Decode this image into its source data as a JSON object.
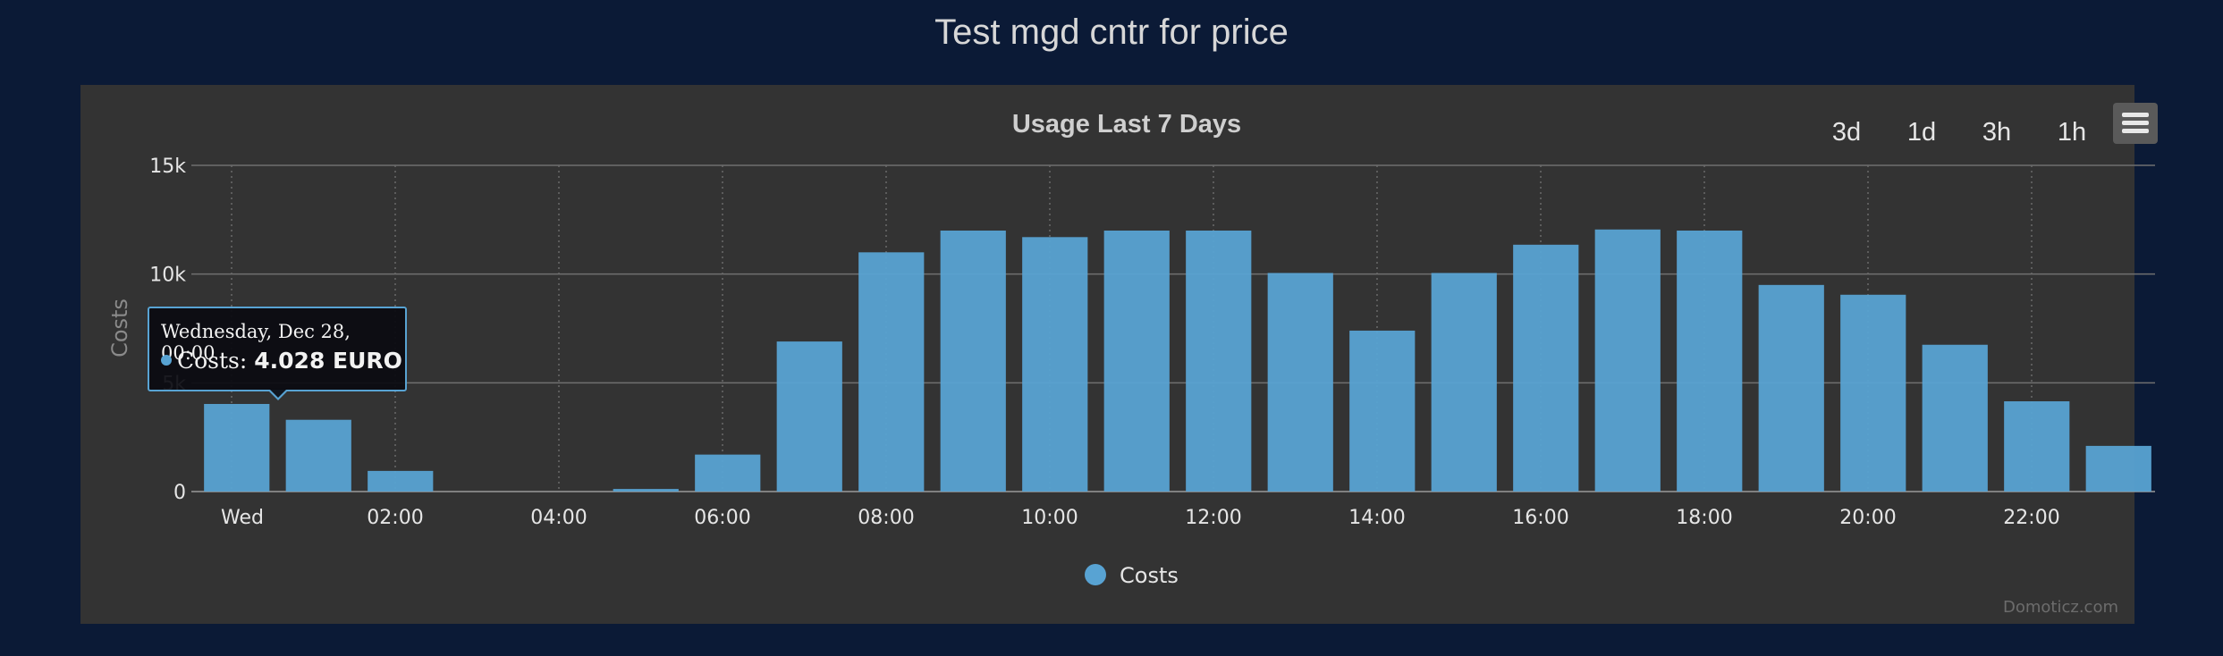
{
  "page": {
    "title": "Test mgd cntr for price"
  },
  "toolbar": {
    "ranges": [
      "3d",
      "1d",
      "3h",
      "1h"
    ],
    "menu_icon": "hamburger-menu-icon"
  },
  "tooltip": {
    "date": "Wednesday, Dec 28, 00:00",
    "series": "Costs",
    "value": "4.028 EURO"
  },
  "credits": "Domoticz.com",
  "colors": {
    "background": "#0b1a36",
    "panel": "#333333",
    "bar": "#58a3d3"
  },
  "chart_data": {
    "type": "bar",
    "title": "Usage Last 7 Days",
    "ylabel": "Costs",
    "xlabel": "",
    "ylim": [
      0,
      15000
    ],
    "y_ticks": [
      "0",
      "5k",
      "10k",
      "15k"
    ],
    "x_tick_labels": [
      "Wed",
      "02:00",
      "04:00",
      "06:00",
      "08:00",
      "10:00",
      "12:00",
      "14:00",
      "16:00",
      "18:00",
      "20:00",
      "22:00"
    ],
    "categories": [
      "00:00",
      "01:00",
      "02:00",
      "03:00",
      "04:00",
      "05:00",
      "06:00",
      "07:00",
      "08:00",
      "09:00",
      "10:00",
      "11:00",
      "12:00",
      "13:00",
      "14:00",
      "15:00",
      "16:00",
      "17:00",
      "18:00",
      "19:00",
      "20:00",
      "21:00",
      "22:00",
      "23:00"
    ],
    "series": [
      {
        "name": "Costs",
        "values": [
          4028,
          3300,
          950,
          0,
          0,
          120,
          1700,
          6900,
          11000,
          12000,
          11700,
          12000,
          12000,
          10050,
          7400,
          10050,
          11350,
          12050,
          12000,
          9500,
          9050,
          6750,
          4150,
          2100
        ]
      }
    ],
    "grid": true,
    "legend": "bottom-center"
  }
}
